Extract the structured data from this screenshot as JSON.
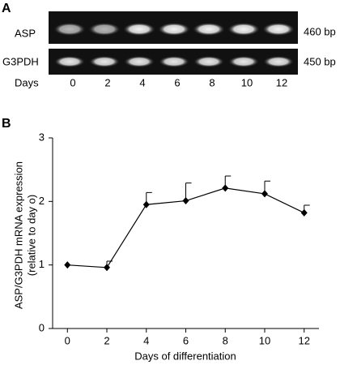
{
  "panel_a": {
    "label": "A",
    "rows": [
      {
        "name": "ASP",
        "size": "460 bp"
      },
      {
        "name": "G3PDH",
        "size": "450 bp"
      }
    ],
    "lanes_label": "Days",
    "lanes": [
      "0",
      "2",
      "4",
      "6",
      "8",
      "10",
      "12"
    ]
  },
  "chart_data": {
    "type": "line",
    "panel_label": "B",
    "y_label": [
      "ASP/G3PDH mRNA expression",
      "(relative to day o)"
    ],
    "x_label": "Days of differentiation",
    "x": [
      0,
      2,
      4,
      6,
      8,
      10,
      12
    ],
    "values": [
      1.0,
      0.96,
      1.95,
      2.01,
      2.21,
      2.12,
      1.82
    ],
    "errors": [
      null,
      0.1,
      0.19,
      0.28,
      0.19,
      0.2,
      0.12
    ],
    "color": "#000000",
    "xlim": [
      -0.75,
      12.75
    ],
    "xticks": [
      0,
      2,
      4,
      6,
      8,
      10,
      12
    ],
    "ylim": [
      0,
      3
    ],
    "yticks": [
      0,
      1,
      2,
      3
    ]
  }
}
